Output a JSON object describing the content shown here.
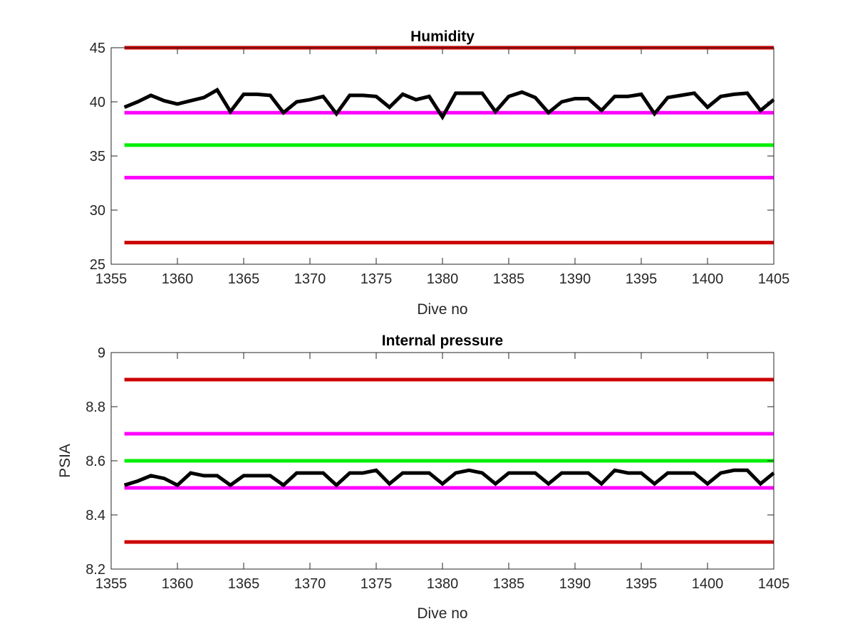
{
  "chart_data": [
    {
      "type": "line",
      "title": "Humidity",
      "xlabel": "Dive no",
      "ylabel": "",
      "xlim": [
        1355,
        1405
      ],
      "ylim": [
        25,
        45
      ],
      "xticks": [
        1355,
        1360,
        1365,
        1370,
        1375,
        1380,
        1385,
        1390,
        1395,
        1400,
        1405
      ],
      "yticks": [
        25,
        30,
        35,
        40,
        45
      ],
      "xtick_labels": [
        "1355",
        "1360",
        "1365",
        "1370",
        "1375",
        "1380",
        "1385",
        "1390",
        "1395",
        "1400",
        "1405"
      ],
      "ytick_labels": [
        "25",
        "30",
        "35",
        "40",
        "45"
      ],
      "grid": false,
      "series": [
        {
          "color": "#000000",
          "x": [
            1356,
            1357,
            1358,
            1359,
            1360,
            1361,
            1362,
            1363,
            1364,
            1365,
            1366,
            1367,
            1368,
            1369,
            1370,
            1371,
            1372,
            1373,
            1374,
            1375,
            1376,
            1377,
            1378,
            1379,
            1380,
            1381,
            1382,
            1383,
            1384,
            1385,
            1386,
            1387,
            1388,
            1389,
            1390,
            1391,
            1392,
            1393,
            1394,
            1395,
            1396,
            1397,
            1398,
            1399,
            1400,
            1401,
            1402,
            1403,
            1404,
            1405
          ],
          "values": [
            39.5,
            40.0,
            40.6,
            40.1,
            39.8,
            40.1,
            40.4,
            41.1,
            39.1,
            40.7,
            40.7,
            40.6,
            39.0,
            40.0,
            40.2,
            40.5,
            38.9,
            40.6,
            40.6,
            40.5,
            39.5,
            40.7,
            40.2,
            40.5,
            38.6,
            40.8,
            40.8,
            40.8,
            39.1,
            40.5,
            40.9,
            40.4,
            39.0,
            40.0,
            40.3,
            40.3,
            39.2,
            40.5,
            40.5,
            40.7,
            38.9,
            40.4,
            40.6,
            40.8,
            39.5,
            40.5,
            40.7,
            40.8,
            39.2,
            40.2
          ]
        },
        {
          "color": "#cc0000",
          "x": [
            1356,
            1405
          ],
          "values": [
            45,
            45
          ]
        },
        {
          "color": "#cc0000",
          "x": [
            1356,
            1405
          ],
          "values": [
            27,
            27
          ]
        },
        {
          "color": "#ff00ff",
          "x": [
            1356,
            1405
          ],
          "values": [
            39,
            39
          ]
        },
        {
          "color": "#ff00ff",
          "x": [
            1356,
            1405
          ],
          "values": [
            33,
            33
          ]
        },
        {
          "color": "#00ee00",
          "x": [
            1356,
            1405
          ],
          "values": [
            36,
            36
          ]
        }
      ]
    },
    {
      "type": "line",
      "title": "Internal pressure",
      "xlabel": "Dive no",
      "ylabel": "PSIA",
      "xlim": [
        1355,
        1405
      ],
      "ylim": [
        8.2,
        9.0
      ],
      "xticks": [
        1355,
        1360,
        1365,
        1370,
        1375,
        1380,
        1385,
        1390,
        1395,
        1400,
        1405
      ],
      "yticks": [
        8.2,
        8.4,
        8.6,
        8.8,
        9.0
      ],
      "xtick_labels": [
        "1355",
        "1360",
        "1365",
        "1370",
        "1375",
        "1380",
        "1385",
        "1390",
        "1395",
        "1400",
        "1405"
      ],
      "ytick_labels": [
        "8.2",
        "8.4",
        "8.6",
        "8.8",
        "9"
      ],
      "grid": false,
      "series": [
        {
          "color": "#000000",
          "x": [
            1356,
            1357,
            1358,
            1359,
            1360,
            1361,
            1362,
            1363,
            1364,
            1365,
            1366,
            1367,
            1368,
            1369,
            1370,
            1371,
            1372,
            1373,
            1374,
            1375,
            1376,
            1377,
            1378,
            1379,
            1380,
            1381,
            1382,
            1383,
            1384,
            1385,
            1386,
            1387,
            1388,
            1389,
            1390,
            1391,
            1392,
            1393,
            1394,
            1395,
            1396,
            1397,
            1398,
            1399,
            1400,
            1401,
            1402,
            1403,
            1404,
            1405
          ],
          "values": [
            8.51,
            8.525,
            8.545,
            8.535,
            8.51,
            8.555,
            8.545,
            8.545,
            8.51,
            8.545,
            8.545,
            8.545,
            8.51,
            8.555,
            8.555,
            8.555,
            8.51,
            8.555,
            8.555,
            8.565,
            8.515,
            8.555,
            8.555,
            8.555,
            8.515,
            8.555,
            8.565,
            8.555,
            8.515,
            8.555,
            8.555,
            8.555,
            8.515,
            8.555,
            8.555,
            8.555,
            8.515,
            8.565,
            8.555,
            8.555,
            8.515,
            8.555,
            8.555,
            8.555,
            8.515,
            8.555,
            8.565,
            8.565,
            8.515,
            8.555
          ]
        },
        {
          "color": "#cc0000",
          "x": [
            1356,
            1405
          ],
          "values": [
            8.9,
            8.9
          ]
        },
        {
          "color": "#cc0000",
          "x": [
            1356,
            1405
          ],
          "values": [
            8.3,
            8.3
          ]
        },
        {
          "color": "#ff00ff",
          "x": [
            1356,
            1405
          ],
          "values": [
            8.7,
            8.7
          ]
        },
        {
          "color": "#ff00ff",
          "x": [
            1356,
            1405
          ],
          "values": [
            8.5,
            8.5
          ]
        },
        {
          "color": "#00ee00",
          "x": [
            1356,
            1405
          ],
          "values": [
            8.6,
            8.6
          ]
        }
      ]
    }
  ]
}
